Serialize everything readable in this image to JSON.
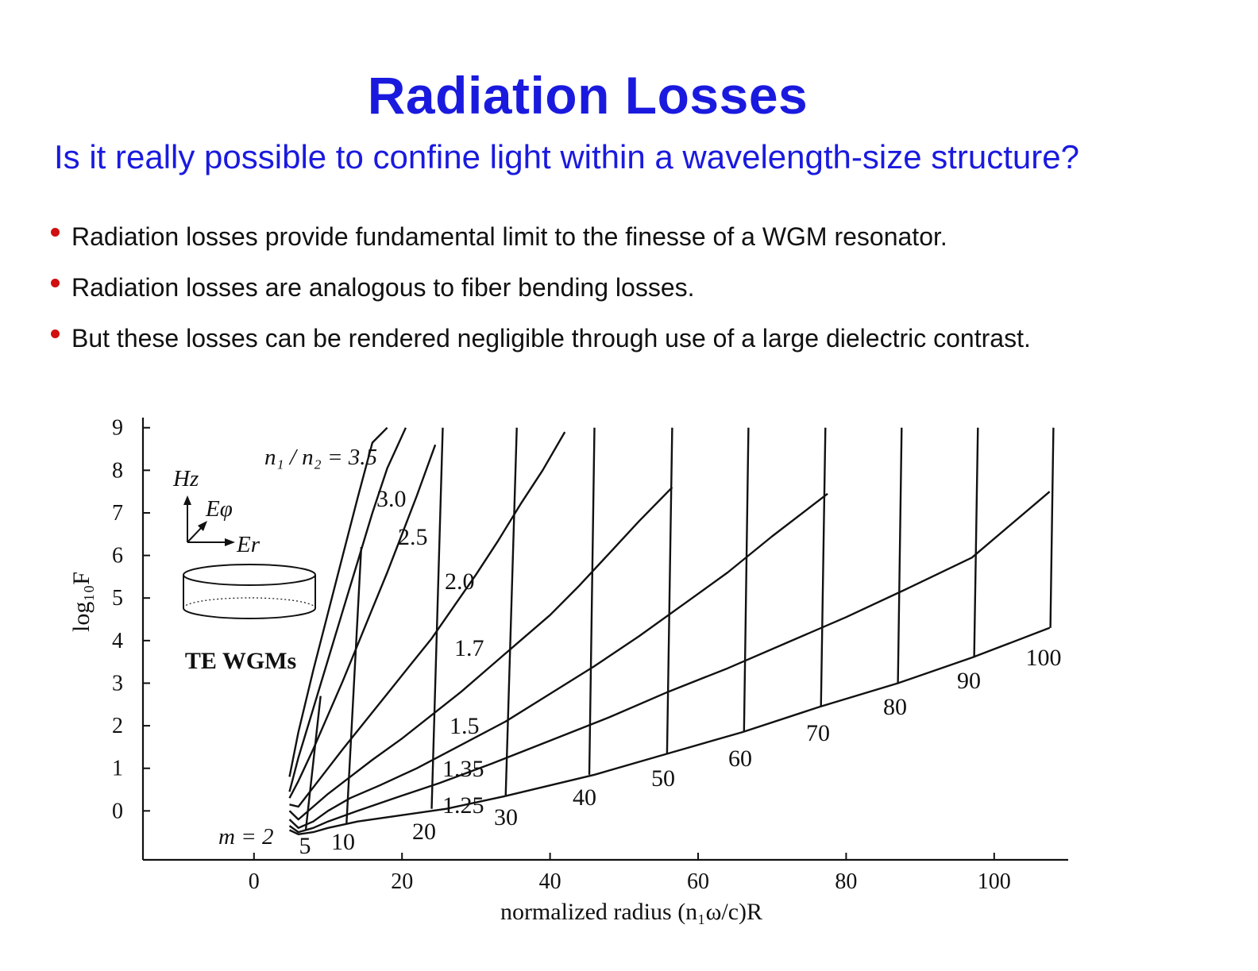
{
  "slide": {
    "title": "Radiation Losses",
    "subtitle": "Is it really possible to confine light within a wavelength-size structure?",
    "bullets": [
      "Radiation losses provide fundamental limit to the finesse of a WGM resonator.",
      "Radiation losses are analogous to fiber bending losses.",
      "But these losses can be rendered negligible through use of a large dielectric contrast."
    ],
    "colors": {
      "title": "#1a1adf",
      "bullet": "#d10f0f",
      "text": "#111111"
    }
  },
  "chart_data": {
    "type": "line",
    "title": "",
    "xlabel": "normalized radius (n₁ω/c)R",
    "ylabel": "log₁₀F",
    "xlim": [
      -15,
      110
    ],
    "ylim": [
      -1.15,
      9.2
    ],
    "xticks": [
      0,
      20,
      40,
      60,
      80,
      100
    ],
    "yticks": [
      0,
      1,
      2,
      3,
      4,
      5,
      6,
      7,
      8,
      9
    ],
    "grid": false,
    "inset_label": "TE WGMs",
    "inset_fields": [
      "H_z",
      "E_φ",
      "E_r"
    ],
    "series_group_label": "n₁ / n₂ = 3.5",
    "series": [
      {
        "name": "3.5",
        "label": "",
        "x": [
          4.8,
          6,
          8,
          10,
          12,
          14,
          16,
          18
        ],
        "y": [
          0.8,
          1.85,
          3.3,
          4.65,
          6.0,
          7.35,
          8.65,
          9.0
        ]
      },
      {
        "name": "3.0",
        "label": "3.0",
        "x": [
          4.8,
          6,
          8,
          10,
          12,
          14,
          16,
          18,
          20.5
        ],
        "y": [
          0.45,
          1.25,
          2.4,
          3.55,
          4.7,
          5.85,
          7.0,
          8.05,
          9.0
        ]
      },
      {
        "name": "2.5",
        "label": "2.5",
        "x": [
          4.8,
          6,
          8,
          10,
          12,
          14,
          16,
          18,
          20,
          22,
          24.5
        ],
        "y": [
          0.3,
          0.7,
          1.45,
          2.25,
          3.05,
          3.9,
          4.75,
          5.6,
          6.5,
          7.4,
          8.6
        ]
      },
      {
        "name": "2.0",
        "label": "2.0",
        "x": [
          4.8,
          6,
          8,
          10,
          12,
          15,
          18,
          21,
          24,
          27,
          30,
          33,
          36,
          39,
          42
        ],
        "y": [
          0.15,
          0.1,
          0.55,
          1.0,
          1.45,
          2.1,
          2.75,
          3.4,
          4.05,
          4.8,
          5.55,
          6.35,
          7.2,
          8.0,
          8.9
        ]
      },
      {
        "name": "1.7",
        "label": "1.7",
        "x": [
          4.8,
          6,
          8,
          10,
          13,
          16,
          20,
          24,
          28,
          32,
          36,
          40,
          44,
          48,
          52,
          56.5
        ],
        "y": [
          0.0,
          -0.2,
          0.1,
          0.4,
          0.8,
          1.2,
          1.7,
          2.25,
          2.8,
          3.4,
          4.0,
          4.6,
          5.3,
          6.05,
          6.8,
          7.6
        ]
      },
      {
        "name": "1.5",
        "label": "1.5",
        "x": [
          4.8,
          6,
          8,
          10,
          13,
          17,
          22,
          28,
          34,
          40,
          46,
          52,
          58,
          64,
          70,
          77.5
        ],
        "y": [
          -0.2,
          -0.4,
          -0.25,
          0.0,
          0.3,
          0.6,
          1.0,
          1.55,
          2.1,
          2.75,
          3.4,
          4.1,
          4.85,
          5.6,
          6.45,
          7.45
        ]
      },
      {
        "name": "1.35",
        "label": "1.35",
        "x": [
          4.8,
          6,
          8,
          10,
          14,
          19,
          25,
          32,
          40,
          48,
          56,
          64,
          72,
          80,
          88,
          97,
          107.5
        ],
        "y": [
          -0.35,
          -0.5,
          -0.4,
          -0.25,
          0.0,
          0.3,
          0.65,
          1.1,
          1.65,
          2.2,
          2.8,
          3.35,
          3.95,
          4.55,
          5.2,
          5.95,
          7.5
        ]
      },
      {
        "name": "1.25",
        "label": "1.25",
        "x": [
          4.8,
          6,
          8,
          10,
          14,
          20,
          26,
          34
        ],
        "y": [
          -0.45,
          -0.55,
          -0.5,
          -0.4,
          -0.25,
          -0.1,
          0.05,
          0.35
        ]
      }
    ],
    "envelope_1_25": {
      "x": [
        34,
        46,
        56,
        66,
        76.5,
        87,
        97,
        107.5
      ],
      "y": [
        0.35,
        0.85,
        1.35,
        1.85,
        2.45,
        3.0,
        3.6,
        4.3
      ]
    },
    "mode_numbers": {
      "label": "m = 2",
      "values": [
        2,
        5,
        10,
        20,
        30,
        40,
        50,
        60,
        70,
        80,
        90,
        100
      ],
      "lines": [
        {
          "m": "5",
          "x": [
            9.0,
            7.0
          ],
          "y": [
            2.7,
            -0.45
          ]
        },
        {
          "m": "10",
          "x": [
            14.5,
            12.5
          ],
          "y": [
            6.2,
            -0.3
          ]
        },
        {
          "m": "20",
          "x": [
            25.5,
            24.0
          ],
          "y": [
            9.0,
            0.05
          ]
        },
        {
          "m": "30",
          "x": [
            35.5,
            34.0
          ],
          "y": [
            9.0,
            0.35
          ]
        },
        {
          "m": "40",
          "x": [
            46.0,
            45.3
          ],
          "y": [
            9.0,
            0.85
          ]
        },
        {
          "m": "50",
          "x": [
            56.5,
            55.8
          ],
          "y": [
            9.0,
            1.35
          ]
        },
        {
          "m": "60",
          "x": [
            66.8,
            66.2
          ],
          "y": [
            9.0,
            1.85
          ]
        },
        {
          "m": "70",
          "x": [
            77.2,
            76.6
          ],
          "y": [
            9.0,
            2.45
          ]
        },
        {
          "m": "80",
          "x": [
            87.5,
            87.0
          ],
          "y": [
            9.0,
            3.0
          ]
        },
        {
          "m": "90",
          "x": [
            97.8,
            97.3
          ],
          "y": [
            9.0,
            3.6
          ]
        },
        {
          "m": "100",
          "x": [
            108.0,
            107.6
          ],
          "y": [
            9.0,
            4.3
          ]
        }
      ]
    }
  }
}
